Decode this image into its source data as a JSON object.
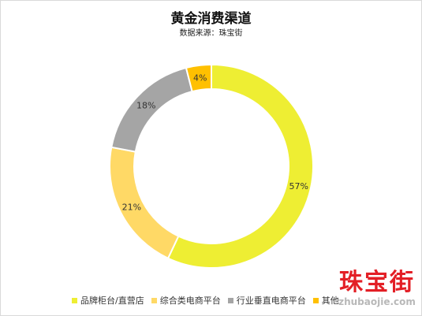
{
  "chart_data": {
    "type": "pie",
    "variant": "donut",
    "title": "黄金消费渠道",
    "subtitle": "数据来源：珠宝街",
    "categories": [
      "品牌柜台/直营店",
      "综合类电商平台",
      "行业垂直电商平台",
      "其他"
    ],
    "values": [
      57,
      21,
      18,
      4
    ],
    "labels": [
      "57%",
      "21%",
      "18%",
      "4%"
    ],
    "colors": [
      "#eeee33",
      "#ffd966",
      "#a5a5a5",
      "#ffc000"
    ],
    "legend": "bottom"
  },
  "watermark": {
    "text_cn": "珠宝街",
    "text_url": "zhubaojie.com"
  }
}
